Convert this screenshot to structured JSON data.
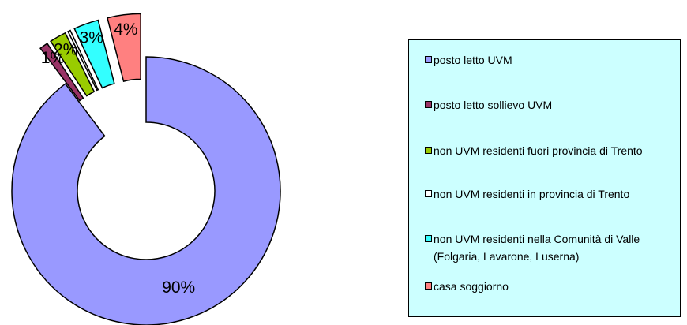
{
  "chart_data": {
    "type": "donut",
    "categories": [
      "posto letto UVM",
      "posto letto sollievo UVM",
      "non UVM residenti fuori provincia di Trento",
      "non UVM residenti in provincia di Trento",
      "non UVM residenti nella Comunità di Valle (Folgaria, Lavarone, Luserna)",
      "casa soggiorno"
    ],
    "values": [
      90,
      1,
      2,
      0.3,
      3,
      4
    ],
    "value_labels": [
      "90%",
      "1%",
      "2%",
      null,
      "3%",
      "4%"
    ],
    "colors": [
      "#9999ff",
      "#993366",
      "#99cc00",
      "#ffffff",
      "#33ffff",
      "#ff8080"
    ],
    "legend": "right"
  }
}
